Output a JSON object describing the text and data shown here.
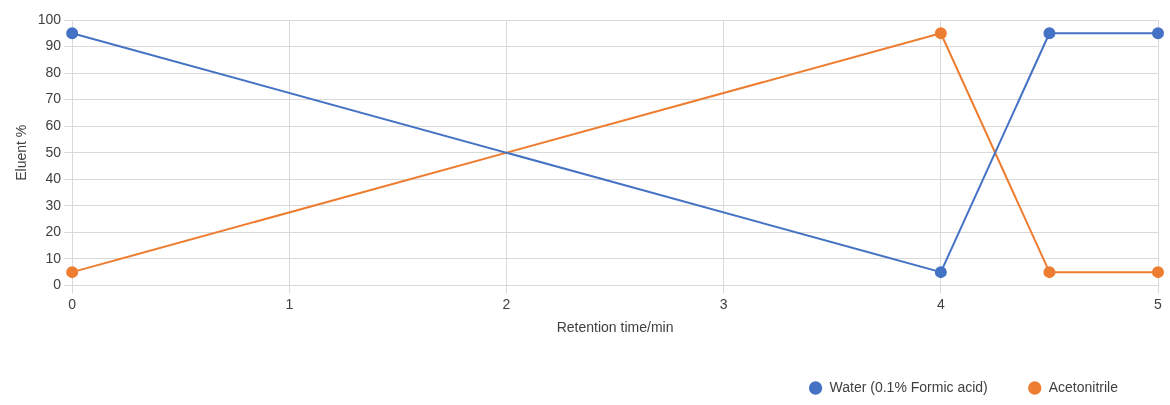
{
  "chart_data": {
    "type": "line",
    "xlabel": "Retention time/min",
    "ylabel": "Eluent %",
    "xlim": [
      0,
      5
    ],
    "xticks": [
      0,
      1,
      2,
      3,
      4,
      5
    ],
    "ylim": [
      0,
      100
    ],
    "yticks": [
      0,
      10,
      20,
      30,
      40,
      50,
      60,
      70,
      80,
      90,
      100
    ],
    "grid": true,
    "legend": "bottom",
    "marker": "circle",
    "line_style": "solid",
    "series": [
      {
        "name": "Water (0.1% Formic acid)",
        "color": "#4472c4",
        "x": [
          0,
          4,
          4.5,
          5
        ],
        "values": [
          95,
          5,
          95,
          95
        ]
      },
      {
        "name": "Acetonitrile",
        "color": "#ed7d31",
        "x": [
          0,
          4,
          4.5,
          5
        ],
        "values": [
          5,
          95,
          5,
          5
        ]
      }
    ]
  }
}
